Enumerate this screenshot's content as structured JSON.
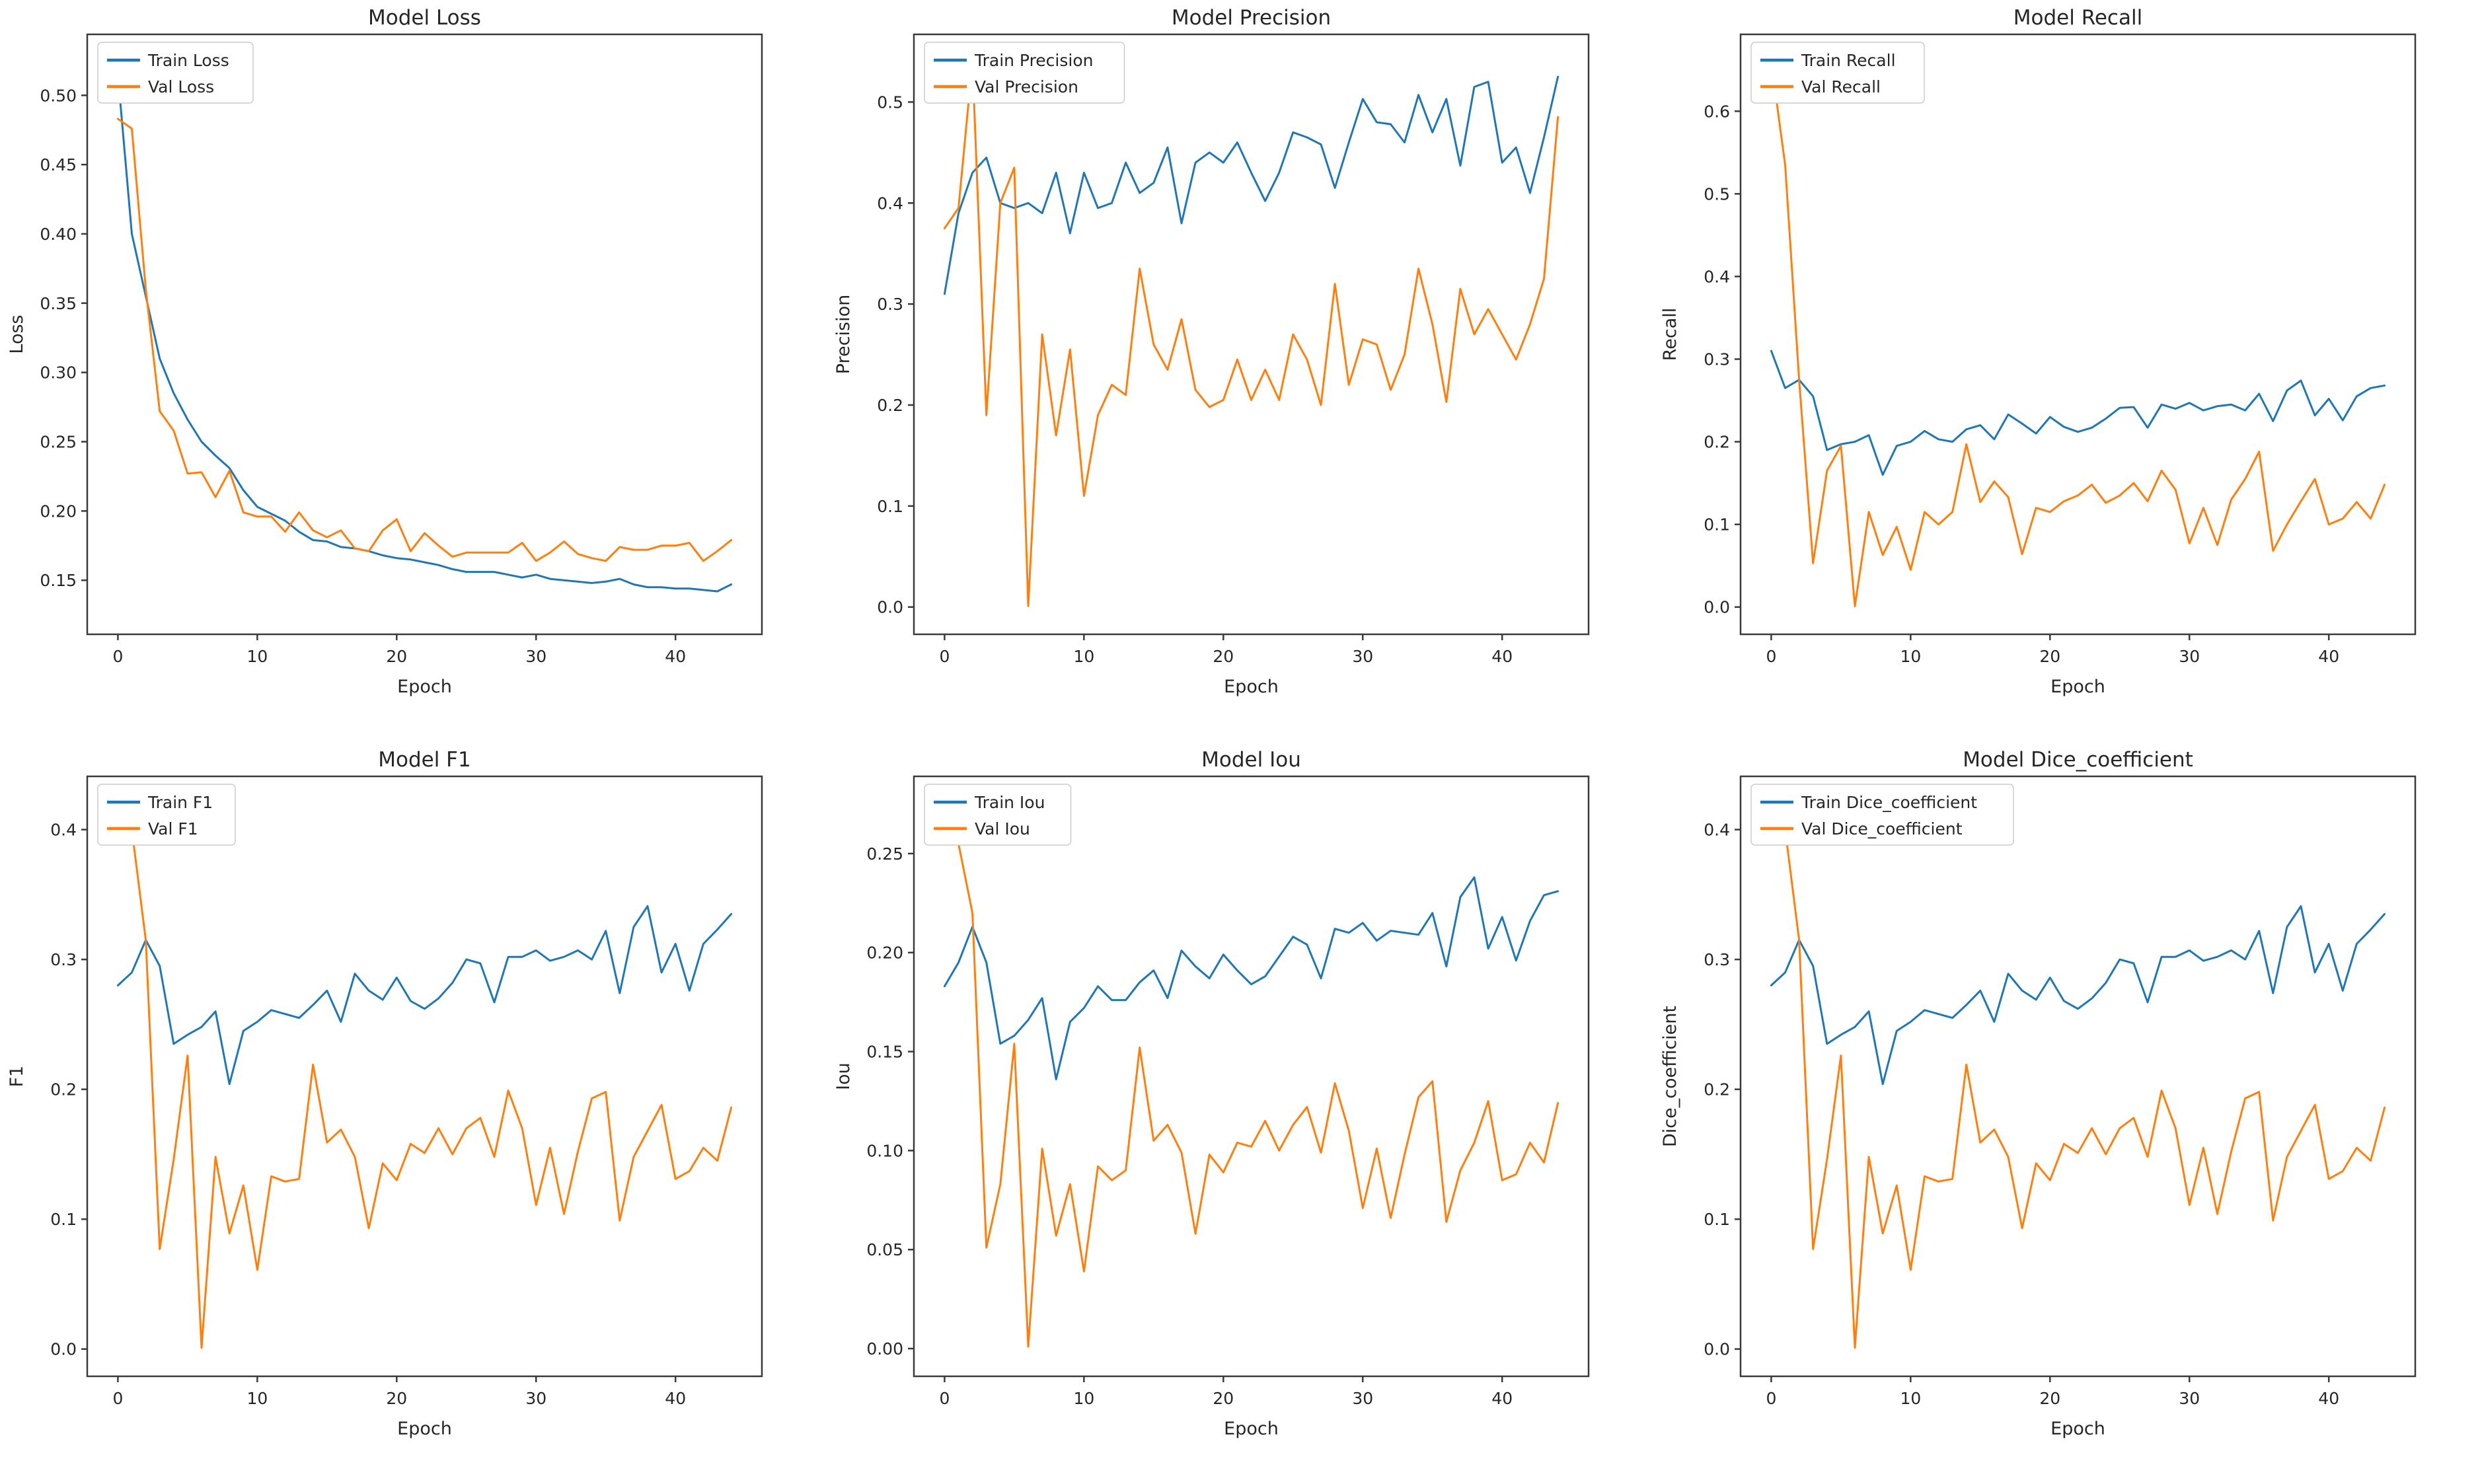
{
  "page": {
    "background": "#ffffff"
  },
  "style": {
    "text_color": "#262626",
    "spine_color": "#3a3a3a",
    "legend_border": "#cccccc",
    "train_color": "#1f77b4",
    "val_color": "#ff7f0e"
  },
  "chart_data": [
    {
      "type": "line",
      "title": "Model Loss",
      "xlabel": "Epoch",
      "ylabel": "Loss",
      "x_ticks": [
        0,
        10,
        20,
        30,
        40
      ],
      "xlim": [
        -2.2,
        46.2
      ],
      "y_ticks": [
        0.15,
        0.2,
        0.25,
        0.3,
        0.35,
        0.4,
        0.45,
        0.5
      ],
      "y_tick_decimals": 2,
      "ylim": [
        0.111,
        0.544
      ],
      "grid": false,
      "legend_position": "upper left",
      "series": [
        {
          "name": "Train Loss",
          "color": "#1f77b4",
          "values": [
            0.515,
            0.4,
            0.355,
            0.31,
            0.285,
            0.266,
            0.25,
            0.24,
            0.231,
            0.215,
            0.203,
            0.198,
            0.193,
            0.185,
            0.179,
            0.178,
            0.174,
            0.173,
            0.171,
            0.168,
            0.166,
            0.165,
            0.163,
            0.161,
            0.158,
            0.156,
            0.156,
            0.156,
            0.154,
            0.152,
            0.154,
            0.151,
            0.15,
            0.149,
            0.148,
            0.149,
            0.151,
            0.147,
            0.145,
            0.145,
            0.144,
            0.144,
            0.143,
            0.142,
            0.147
          ]
        },
        {
          "name": "Val Loss",
          "color": "#ff7f0e",
          "values": [
            0.483,
            0.476,
            0.36,
            0.272,
            0.258,
            0.227,
            0.228,
            0.21,
            0.229,
            0.199,
            0.196,
            0.196,
            0.185,
            0.199,
            0.186,
            0.181,
            0.186,
            0.173,
            0.171,
            0.186,
            0.194,
            0.171,
            0.184,
            0.175,
            0.167,
            0.17,
            0.17,
            0.17,
            0.17,
            0.177,
            0.164,
            0.17,
            0.178,
            0.169,
            0.166,
            0.164,
            0.174,
            0.172,
            0.172,
            0.175,
            0.175,
            0.177,
            0.164,
            0.171,
            0.179
          ]
        }
      ]
    },
    {
      "type": "line",
      "title": "Model Precision",
      "xlabel": "Epoch",
      "ylabel": "Precision",
      "x_ticks": [
        0,
        10,
        20,
        30,
        40
      ],
      "xlim": [
        -2.2,
        46.2
      ],
      "y_ticks": [
        0.0,
        0.1,
        0.2,
        0.3,
        0.4,
        0.5
      ],
      "y_tick_decimals": 1,
      "ylim": [
        -0.027,
        0.567
      ],
      "grid": false,
      "legend_position": "upper left",
      "series": [
        {
          "name": "Train Precision",
          "color": "#1f77b4",
          "values": [
            0.31,
            0.39,
            0.43,
            0.445,
            0.4,
            0.395,
            0.4,
            0.39,
            0.43,
            0.37,
            0.43,
            0.395,
            0.4,
            0.44,
            0.41,
            0.42,
            0.455,
            0.38,
            0.44,
            0.45,
            0.44,
            0.46,
            0.43,
            0.402,
            0.43,
            0.47,
            0.465,
            0.458,
            0.415,
            0.46,
            0.503,
            0.48,
            0.478,
            0.46,
            0.507,
            0.47,
            0.503,
            0.437,
            0.515,
            0.52,
            0.44,
            0.455,
            0.41,
            0.465,
            0.525
          ]
        },
        {
          "name": "Val Precision",
          "color": "#ff7f0e",
          "values": [
            0.375,
            0.395,
            0.54,
            0.19,
            0.4,
            0.435,
            0.001,
            0.27,
            0.17,
            0.255,
            0.11,
            0.19,
            0.22,
            0.21,
            0.335,
            0.26,
            0.235,
            0.285,
            0.215,
            0.198,
            0.205,
            0.245,
            0.205,
            0.235,
            0.205,
            0.27,
            0.245,
            0.2,
            0.32,
            0.22,
            0.265,
            0.26,
            0.215,
            0.25,
            0.335,
            0.28,
            0.203,
            0.315,
            0.27,
            0.295,
            0.27,
            0.245,
            0.28,
            0.325,
            0.485
          ]
        }
      ]
    },
    {
      "type": "line",
      "title": "Model Recall",
      "xlabel": "Epoch",
      "ylabel": "Recall",
      "x_ticks": [
        0,
        10,
        20,
        30,
        40
      ],
      "xlim": [
        -2.2,
        46.2
      ],
      "y_ticks": [
        0.0,
        0.1,
        0.2,
        0.3,
        0.4,
        0.5,
        0.6
      ],
      "y_tick_decimals": 1,
      "ylim": [
        -0.033,
        0.693
      ],
      "grid": false,
      "legend_position": "upper left",
      "series": [
        {
          "name": "Train Recall",
          "color": "#1f77b4",
          "values": [
            0.31,
            0.265,
            0.275,
            0.255,
            0.19,
            0.197,
            0.2,
            0.208,
            0.16,
            0.195,
            0.2,
            0.213,
            0.203,
            0.2,
            0.215,
            0.22,
            0.203,
            0.233,
            0.222,
            0.21,
            0.23,
            0.218,
            0.212,
            0.217,
            0.228,
            0.241,
            0.242,
            0.217,
            0.245,
            0.24,
            0.247,
            0.238,
            0.243,
            0.245,
            0.238,
            0.258,
            0.225,
            0.262,
            0.274,
            0.232,
            0.252,
            0.226,
            0.255,
            0.265,
            0.268
          ]
        },
        {
          "name": "Val Recall",
          "color": "#ff7f0e",
          "values": [
            0.66,
            0.535,
            0.275,
            0.053,
            0.165,
            0.195,
            0.001,
            0.115,
            0.063,
            0.097,
            0.045,
            0.115,
            0.1,
            0.115,
            0.197,
            0.127,
            0.152,
            0.133,
            0.064,
            0.12,
            0.115,
            0.128,
            0.135,
            0.148,
            0.126,
            0.135,
            0.15,
            0.128,
            0.165,
            0.142,
            0.077,
            0.12,
            0.075,
            0.13,
            0.155,
            0.188,
            0.068,
            0.1,
            0.128,
            0.155,
            0.1,
            0.107,
            0.127,
            0.107,
            0.148
          ]
        }
      ]
    },
    {
      "type": "line",
      "title": "Model F1",
      "xlabel": "Epoch",
      "ylabel": "F1",
      "x_ticks": [
        0,
        10,
        20,
        30,
        40
      ],
      "xlim": [
        -2.2,
        46.2
      ],
      "y_ticks": [
        0.0,
        0.1,
        0.2,
        0.3,
        0.4
      ],
      "y_tick_decimals": 1,
      "ylim": [
        -0.021,
        0.441
      ],
      "grid": false,
      "legend_position": "upper left",
      "series": [
        {
          "name": "Train F1",
          "color": "#1f77b4",
          "values": [
            0.28,
            0.29,
            0.315,
            0.295,
            0.235,
            0.242,
            0.248,
            0.26,
            0.204,
            0.245,
            0.252,
            0.261,
            0.258,
            0.255,
            0.265,
            0.276,
            0.252,
            0.289,
            0.276,
            0.269,
            0.286,
            0.268,
            0.262,
            0.27,
            0.282,
            0.3,
            0.297,
            0.267,
            0.302,
            0.302,
            0.307,
            0.299,
            0.302,
            0.307,
            0.3,
            0.322,
            0.274,
            0.325,
            0.341,
            0.29,
            0.312,
            0.276,
            0.312,
            0.323,
            0.335
          ]
        },
        {
          "name": "Val F1",
          "color": "#ff7f0e",
          "values": [
            0.42,
            0.4,
            0.315,
            0.077,
            0.146,
            0.226,
            0.001,
            0.148,
            0.089,
            0.126,
            0.061,
            0.133,
            0.129,
            0.131,
            0.219,
            0.159,
            0.169,
            0.148,
            0.093,
            0.143,
            0.13,
            0.158,
            0.151,
            0.17,
            0.15,
            0.17,
            0.178,
            0.148,
            0.199,
            0.17,
            0.111,
            0.155,
            0.104,
            0.152,
            0.193,
            0.198,
            0.099,
            0.148,
            0.168,
            0.188,
            0.131,
            0.137,
            0.155,
            0.145,
            0.186
          ]
        }
      ]
    },
    {
      "type": "line",
      "title": "Model Iou",
      "xlabel": "Epoch",
      "ylabel": "Iou",
      "x_ticks": [
        0,
        10,
        20,
        30,
        40
      ],
      "xlim": [
        -2.2,
        46.2
      ],
      "y_ticks": [
        0.0,
        0.05,
        0.1,
        0.15,
        0.2,
        0.25
      ],
      "y_tick_decimals": 2,
      "ylim": [
        -0.014,
        0.289
      ],
      "grid": false,
      "legend_position": "upper left",
      "series": [
        {
          "name": "Train Iou",
          "color": "#1f77b4",
          "values": [
            0.183,
            0.195,
            0.213,
            0.195,
            0.154,
            0.158,
            0.166,
            0.177,
            0.136,
            0.165,
            0.172,
            0.183,
            0.176,
            0.176,
            0.185,
            0.191,
            0.177,
            0.201,
            0.193,
            0.187,
            0.199,
            0.191,
            0.184,
            0.188,
            0.198,
            0.208,
            0.204,
            0.187,
            0.212,
            0.21,
            0.215,
            0.206,
            0.211,
            0.21,
            0.209,
            0.22,
            0.193,
            0.228,
            0.238,
            0.202,
            0.218,
            0.196,
            0.216,
            0.229,
            0.231
          ]
        },
        {
          "name": "Val Iou",
          "color": "#ff7f0e",
          "values": [
            0.275,
            0.255,
            0.22,
            0.051,
            0.083,
            0.154,
            0.001,
            0.101,
            0.057,
            0.083,
            0.039,
            0.092,
            0.085,
            0.09,
            0.152,
            0.105,
            0.113,
            0.099,
            0.058,
            0.098,
            0.089,
            0.104,
            0.102,
            0.115,
            0.1,
            0.113,
            0.122,
            0.099,
            0.134,
            0.11,
            0.071,
            0.101,
            0.066,
            0.098,
            0.127,
            0.135,
            0.064,
            0.09,
            0.104,
            0.125,
            0.085,
            0.088,
            0.104,
            0.094,
            0.124
          ]
        }
      ]
    },
    {
      "type": "line",
      "title": "Model Dice_coefficient",
      "xlabel": "Epoch",
      "ylabel": "Dice_coefficient",
      "x_ticks": [
        0,
        10,
        20,
        30,
        40
      ],
      "xlim": [
        -2.2,
        46.2
      ],
      "y_ticks": [
        0.0,
        0.1,
        0.2,
        0.3,
        0.4
      ],
      "y_tick_decimals": 1,
      "ylim": [
        -0.021,
        0.441
      ],
      "grid": false,
      "legend_position": "upper left",
      "series": [
        {
          "name": "Train Dice_coefficient",
          "color": "#1f77b4",
          "values": [
            0.28,
            0.29,
            0.315,
            0.295,
            0.235,
            0.242,
            0.248,
            0.26,
            0.204,
            0.245,
            0.252,
            0.261,
            0.258,
            0.255,
            0.265,
            0.276,
            0.252,
            0.289,
            0.276,
            0.269,
            0.286,
            0.268,
            0.262,
            0.27,
            0.282,
            0.3,
            0.297,
            0.267,
            0.302,
            0.302,
            0.307,
            0.299,
            0.302,
            0.307,
            0.3,
            0.322,
            0.274,
            0.325,
            0.341,
            0.29,
            0.312,
            0.276,
            0.312,
            0.323,
            0.335
          ]
        },
        {
          "name": "Val Dice_coefficient",
          "color": "#ff7f0e",
          "values": [
            0.42,
            0.4,
            0.315,
            0.077,
            0.146,
            0.226,
            0.001,
            0.148,
            0.089,
            0.126,
            0.061,
            0.133,
            0.129,
            0.131,
            0.219,
            0.159,
            0.169,
            0.148,
            0.093,
            0.143,
            0.13,
            0.158,
            0.151,
            0.17,
            0.15,
            0.17,
            0.178,
            0.148,
            0.199,
            0.17,
            0.111,
            0.155,
            0.104,
            0.152,
            0.193,
            0.198,
            0.099,
            0.148,
            0.168,
            0.188,
            0.131,
            0.137,
            0.155,
            0.145,
            0.186
          ]
        }
      ]
    }
  ]
}
